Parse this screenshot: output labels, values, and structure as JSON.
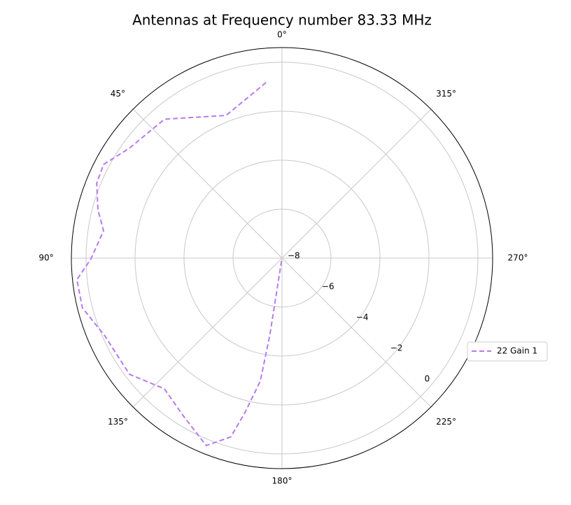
{
  "chart_data": {
    "type": "polar",
    "title": "Antennas at Frequency number 83.33 MHz",
    "theta": [
      5.2,
      21.4,
      40.2,
      54.2,
      62.3,
      68,
      75.3,
      81.3,
      90.2,
      96,
      104,
      113.7,
      127.3,
      138,
      148,
      158,
      164,
      166.5,
      170,
      171,
      180
    ],
    "series": [
      {
        "name": "22 Gain 1",
        "color": "#b57bee",
        "values": [
          -0.8,
          -1.74,
          -0.57,
          -0.32,
          0.23,
          0.16,
          -0.23,
          -0.63,
          -0.2,
          0.42,
          0.4,
          -0.1,
          -0.17,
          -0.82,
          -0.4,
          0.26,
          -0.4,
          -1.5,
          -2.9,
          -4.8,
          -8
        ]
      }
    ],
    "rlim": [
      -8,
      0.6
    ],
    "rticks": [
      {
        "value": -8,
        "label": "−8"
      },
      {
        "value": -6,
        "label": "−6"
      },
      {
        "value": -4,
        "label": "−4"
      },
      {
        "value": -2,
        "label": "−2"
      },
      {
        "value": 0,
        "label": "0"
      }
    ],
    "thetaticks": [
      {
        "value": 0,
        "label": "0°"
      },
      {
        "value": 45,
        "label": "45°"
      },
      {
        "value": 90,
        "label": "90°"
      },
      {
        "value": 135,
        "label": "135°"
      },
      {
        "value": 180,
        "label": "180°"
      },
      {
        "value": 225,
        "label": "225°"
      },
      {
        "value": 270,
        "label": "270°"
      },
      {
        "value": 315,
        "label": "315°"
      }
    ],
    "grid": true,
    "legend": "right"
  }
}
